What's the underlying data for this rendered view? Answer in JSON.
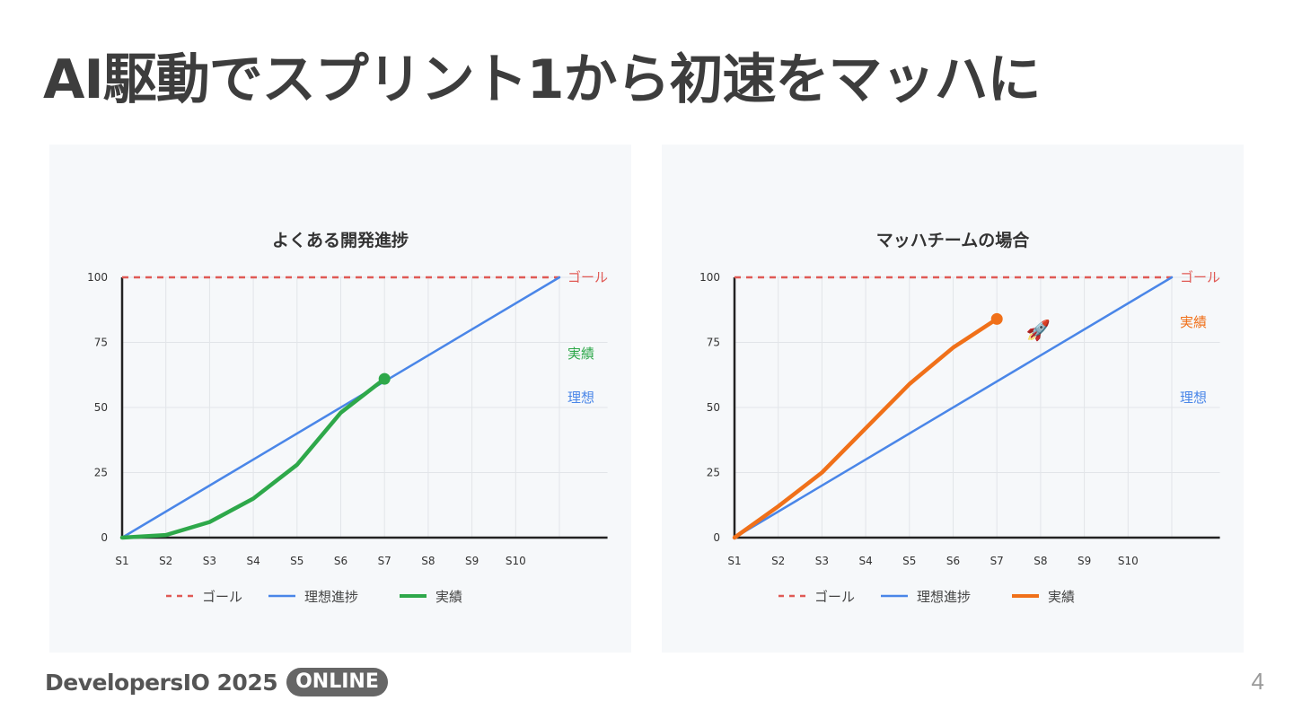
{
  "slide": {
    "title": "AI駆動でスプリント1から初速をマッハに",
    "brand": "DevelopersIO 2025",
    "badge": "ONLINE",
    "page_number": "4"
  },
  "colors": {
    "goal": "#e05a55",
    "ideal": "#4a86e8",
    "actual_left": "#2ea84a",
    "actual_right": "#f07019",
    "axis": "#222222",
    "grid": "#e2e5e9"
  },
  "chart_data": [
    {
      "type": "line",
      "title": "よくある開発進捗",
      "categories": [
        "S1",
        "S2",
        "S3",
        "S4",
        "S5",
        "S6",
        "S7",
        "S8",
        "S9",
        "S10"
      ],
      "ylim": [
        0,
        100
      ],
      "yticks": [
        0,
        25,
        50,
        75,
        100
      ],
      "grid": true,
      "legend_position": "bottom",
      "legend": [
        "ゴール",
        "理想進捗",
        "実績"
      ],
      "annotations": {
        "goal": "ゴール",
        "actual": "実績",
        "ideal": "理想"
      },
      "series": [
        {
          "name": "ゴール",
          "key": "goal",
          "style": "dashed",
          "x": [
            1,
            11
          ],
          "y": [
            100,
            100
          ]
        },
        {
          "name": "理想進捗",
          "key": "ideal",
          "style": "solid",
          "x": [
            1,
            11
          ],
          "y": [
            0,
            100
          ]
        },
        {
          "name": "実績",
          "key": "actual",
          "style": "solid",
          "x": [
            1,
            2,
            3,
            4,
            5,
            6,
            7
          ],
          "y": [
            0,
            1,
            6,
            15,
            28,
            48,
            61
          ],
          "end_marker": true
        }
      ],
      "emoji": ""
    },
    {
      "type": "line",
      "title": "マッハチームの場合",
      "categories": [
        "S1",
        "S2",
        "S3",
        "S4",
        "S5",
        "S6",
        "S7",
        "S8",
        "S9",
        "S10"
      ],
      "ylim": [
        0,
        100
      ],
      "yticks": [
        0,
        25,
        50,
        75,
        100
      ],
      "grid": true,
      "legend_position": "bottom",
      "legend": [
        "ゴール",
        "理想進捗",
        "実績"
      ],
      "annotations": {
        "goal": "ゴール",
        "actual": "実績",
        "ideal": "理想"
      },
      "series": [
        {
          "name": "ゴール",
          "key": "goal",
          "style": "dashed",
          "x": [
            1,
            11
          ],
          "y": [
            100,
            100
          ]
        },
        {
          "name": "理想進捗",
          "key": "ideal",
          "style": "solid",
          "x": [
            1,
            11
          ],
          "y": [
            0,
            100
          ]
        },
        {
          "name": "実績",
          "key": "actual",
          "style": "solid",
          "x": [
            1,
            2,
            3,
            4,
            5,
            6,
            7
          ],
          "y": [
            0,
            12,
            25,
            42,
            59,
            73,
            84
          ],
          "end_marker": true
        }
      ],
      "emoji": "🚀"
    }
  ]
}
